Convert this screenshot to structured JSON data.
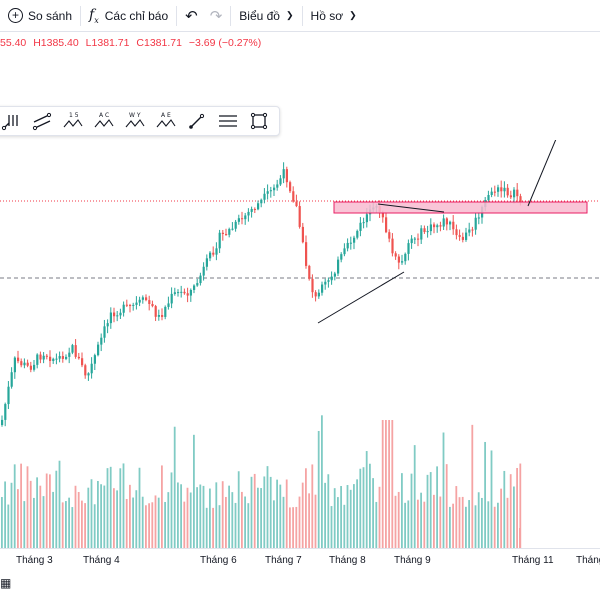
{
  "toolbar": {
    "compare_label": "So sánh",
    "indicators_label": "Các chỉ báo",
    "chart_label": "Biểu đồ",
    "profile_label": "Hồ sơ"
  },
  "ohlc": {
    "open": "55.40",
    "high": "H1385.40",
    "low": "L1381.71",
    "close": "C1381.71",
    "change": "−3.69 (−0.27%)"
  },
  "drawing_tools": [
    {
      "name": "pitchfork-icon"
    },
    {
      "name": "parallel-channel-icon"
    },
    {
      "name": "pattern-15-icon",
      "text": "1 5"
    },
    {
      "name": "pattern-ac-icon",
      "text": "A C"
    },
    {
      "name": "pattern-wy-icon",
      "text": "W Y"
    },
    {
      "name": "pattern-ae-icon",
      "text": "A E"
    },
    {
      "name": "brush-icon"
    },
    {
      "name": "text-lines-icon"
    },
    {
      "name": "rectangle-icon"
    }
  ],
  "xaxis": {
    "labels": [
      "Tháng 3",
      "Tháng 4",
      "Tháng 6",
      "Tháng 7",
      "Tháng 8",
      "Tháng 9",
      "Tháng 11",
      "Tháng"
    ]
  },
  "colors": {
    "up": "#26a69a",
    "down": "#ef5350",
    "zone_fill": "#f8bbd0",
    "zone_border": "#e91e63",
    "price_line": "#f23645"
  }
}
